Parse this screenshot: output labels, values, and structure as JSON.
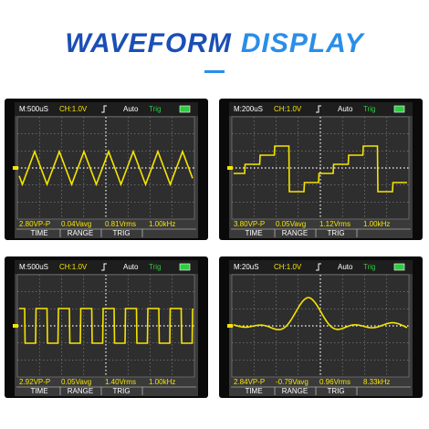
{
  "header": {
    "title_part1": "WAVEFORM",
    "title_part2": "DISPLAY"
  },
  "screens": [
    {
      "timebase": "M:500uS",
      "channel": "CH:1.0V",
      "mode": "Auto",
      "trigger": "Trig",
      "measurements": [
        "2.80VP-P",
        "0.04Vavg",
        "0.81Vrms",
        "1.00kHz"
      ],
      "buttons": [
        "TIME",
        "RANGE",
        "TRIG"
      ]
    },
    {
      "timebase": "M:200uS",
      "channel": "CH:1.0V",
      "mode": "Auto",
      "trigger": "Trig",
      "measurements": [
        "3.80VP-P",
        "0.05Vavg",
        "1.12Vrms",
        "1.00kHz"
      ],
      "buttons": [
        "TIME",
        "RANGE",
        "TRIG"
      ]
    },
    {
      "timebase": "M:500uS",
      "channel": "CH:1.0V",
      "mode": "Auto",
      "trigger": "Trig",
      "measurements": [
        "2.92VP-P",
        "0.05Vavg",
        "1.40Vrms",
        "1.00kHz"
      ],
      "buttons": [
        "TIME",
        "RANGE",
        "TRIG"
      ]
    },
    {
      "timebase": "M:20uS",
      "channel": "CH:1.0V",
      "mode": "Auto",
      "trigger": "Trig",
      "measurements": [
        "2.84VP-P",
        "-0.79Vavg",
        "0.96Vrms",
        "8.33kHz"
      ],
      "buttons": [
        "TIME",
        "RANGE",
        "TRIG"
      ]
    }
  ]
}
